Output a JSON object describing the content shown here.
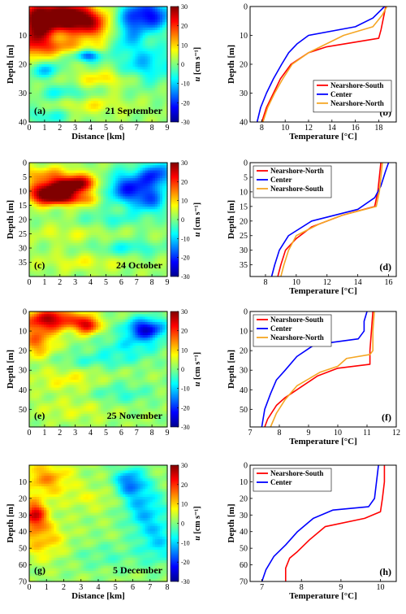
{
  "chart_data": [
    {
      "type": "heatmap",
      "panel_label": "(a)",
      "date": "21 September",
      "xlabel": "Distance [km]",
      "ylabel": "Depth [m]",
      "xlim": [
        0,
        9
      ],
      "ylim": [
        0,
        40
      ],
      "xticks": [
        0,
        1,
        2,
        3,
        4,
        5,
        6,
        7,
        8,
        9
      ],
      "yticks": [
        10,
        20,
        30,
        40
      ],
      "colorbar": {
        "label": "u [cm s⁻¹]",
        "range": [
          -30,
          30
        ],
        "ticks": [
          30,
          20,
          10,
          0,
          -10,
          -20,
          -30
        ],
        "variable": "u",
        "unit": "[cm s⁻¹]"
      },
      "features": [
        {
          "x": 1.5,
          "y": 3,
          "sx": 1.6,
          "sy": 4,
          "v": 26
        },
        {
          "x": 0.4,
          "y": 10,
          "sx": 0.8,
          "sy": 5,
          "v": 22
        },
        {
          "x": 3.2,
          "y": 4,
          "sx": 1.2,
          "sy": 3,
          "v": 18
        },
        {
          "x": 4.5,
          "y": 8,
          "sx": 1.5,
          "sy": 3,
          "v": 12
        },
        {
          "x": 2.3,
          "y": 14,
          "sx": 1.5,
          "sy": 2,
          "v": 10
        },
        {
          "x": 7.7,
          "y": 3,
          "sx": 1.2,
          "sy": 4,
          "v": -24
        },
        {
          "x": 6.3,
          "y": 9,
          "sx": 0.8,
          "sy": 4,
          "v": -14
        },
        {
          "x": 3.8,
          "y": 17,
          "sx": 0.6,
          "sy": 1.5,
          "v": -20
        },
        {
          "x": 1.0,
          "y": 22,
          "sx": 0.8,
          "sy": 2,
          "v": -12
        },
        {
          "x": 7.6,
          "y": 20,
          "sx": 1.3,
          "sy": 5,
          "v": -12
        },
        {
          "x": 5.0,
          "y": 25,
          "sx": 1.5,
          "sy": 2,
          "v": 8
        },
        {
          "x": 2.2,
          "y": 30,
          "sx": 1.2,
          "sy": 2,
          "v": -8
        },
        {
          "x": 4.0,
          "y": 34,
          "sx": 1.5,
          "sy": 2,
          "v": 6
        },
        {
          "x": 1.2,
          "y": 38,
          "sx": 1.0,
          "sy": 2,
          "v": -8
        }
      ]
    },
    {
      "type": "line",
      "panel_label": "(b)",
      "xlabel": "Temperature [°C]",
      "ylabel": "Depth [m]",
      "xlim": [
        7,
        19.5
      ],
      "ylim": [
        0,
        40
      ],
      "xticks": [
        8,
        10,
        12,
        14,
        16,
        18
      ],
      "yticks": [
        0,
        10,
        20,
        30,
        40
      ],
      "legend_position": "lower-right",
      "series": [
        {
          "name": "Nearshore-South",
          "color": "#ff0000",
          "temp": [
            18.6,
            18.4,
            18.2,
            18.0,
            13.5,
            12.0,
            10.5,
            9.6,
            9.0,
            8.4,
            8.0
          ],
          "depth": [
            0,
            4,
            8,
            11,
            14,
            16,
            20,
            25,
            30,
            35,
            40
          ]
        },
        {
          "name": "Center",
          "color": "#0000ff",
          "temp": [
            18.5,
            17.5,
            16.0,
            12.0,
            11.0,
            10.3,
            9.7,
            9.0,
            8.4,
            7.9,
            7.6
          ],
          "depth": [
            0,
            4,
            7,
            10,
            13,
            16,
            20,
            25,
            30,
            35,
            40
          ]
        },
        {
          "name": "Nearshore-North",
          "color": "#f5a623",
          "temp": [
            18.7,
            18.3,
            17.5,
            15.0,
            13.5,
            12.0,
            10.6,
            9.8,
            9.1,
            8.5,
            8.1
          ],
          "depth": [
            0,
            3,
            7,
            10,
            13,
            16,
            20,
            25,
            30,
            35,
            40
          ]
        }
      ]
    },
    {
      "type": "heatmap",
      "panel_label": "(c)",
      "date": "24 October",
      "xlabel": "",
      "ylabel": "Depth [m]",
      "xlim": [
        0,
        9
      ],
      "ylim": [
        0,
        40
      ],
      "xticks": [
        0,
        1,
        2,
        3,
        4,
        5,
        6,
        7,
        8,
        9
      ],
      "yticks": [
        0,
        5,
        10,
        15,
        20,
        25,
        30,
        35
      ],
      "colorbar": {
        "label": "u [cm s⁻¹]",
        "range": [
          -30,
          30
        ],
        "ticks": [
          30,
          20,
          10,
          0,
          -10,
          -20,
          -30
        ],
        "variable": "u",
        "unit": "[cm s⁻¹]"
      },
      "features": [
        {
          "x": 2.3,
          "y": 9,
          "sx": 1.0,
          "sy": 2.5,
          "v": 28
        },
        {
          "x": 1.0,
          "y": 11,
          "sx": 0.9,
          "sy": 2.5,
          "v": 22
        },
        {
          "x": 3.5,
          "y": 7,
          "sx": 0.9,
          "sy": 2,
          "v": 16
        },
        {
          "x": 2.6,
          "y": 13,
          "sx": 1.3,
          "sy": 1.5,
          "v": 14
        },
        {
          "x": 0.8,
          "y": 4,
          "sx": 1.5,
          "sy": 2,
          "v": 10
        },
        {
          "x": 6.6,
          "y": 9,
          "sx": 1.2,
          "sy": 4,
          "v": -22
        },
        {
          "x": 8.4,
          "y": 4,
          "sx": 0.8,
          "sy": 3,
          "v": -18
        },
        {
          "x": 8.0,
          "y": 14,
          "sx": 0.8,
          "sy": 3,
          "v": -12
        },
        {
          "x": 5.5,
          "y": 20,
          "sx": 1.5,
          "sy": 2,
          "v": -6
        },
        {
          "x": 2.5,
          "y": 25,
          "sx": 1.8,
          "sy": 2,
          "v": 4
        },
        {
          "x": 6.5,
          "y": 30,
          "sx": 1.5,
          "sy": 2,
          "v": -8
        },
        {
          "x": 3.5,
          "y": 35,
          "sx": 2.0,
          "sy": 2,
          "v": 5
        }
      ]
    },
    {
      "type": "line",
      "panel_label": "(d)",
      "xlabel": "Temperature [°C]",
      "ylabel": "Depth [m]",
      "xlim": [
        7,
        16.5
      ],
      "ylim": [
        0,
        39
      ],
      "xticks": [
        8,
        10,
        12,
        14,
        16
      ],
      "yticks": [
        0,
        5,
        10,
        15,
        20,
        25,
        30,
        35
      ],
      "legend_position": "top-left",
      "series": [
        {
          "name": "Nearshore-North",
          "color": "#ff0000",
          "temp": [
            15.5,
            15.4,
            15.3,
            15.1,
            13.0,
            11.0,
            10.0,
            9.3,
            9.0,
            8.8
          ],
          "depth": [
            0,
            5,
            10,
            15,
            18,
            22,
            26,
            30,
            35,
            39
          ]
        },
        {
          "name": "Center",
          "color": "#0000ff",
          "temp": [
            16.0,
            15.8,
            15.5,
            15.1,
            14.0,
            11.0,
            9.5,
            8.9,
            8.6,
            8.4
          ],
          "depth": [
            0,
            3,
            8,
            12,
            16,
            20,
            25,
            30,
            35,
            39
          ]
        },
        {
          "name": "Nearshore-South",
          "color": "#f5a623",
          "temp": [
            15.6,
            15.5,
            15.4,
            15.2,
            13.0,
            11.5,
            10.0,
            9.5,
            9.2,
            9.0
          ],
          "depth": [
            0,
            5,
            10,
            15,
            18,
            21,
            25,
            30,
            35,
            39
          ]
        }
      ]
    },
    {
      "type": "heatmap",
      "panel_label": "(e)",
      "date": "25 November",
      "xlabel": "",
      "ylabel": "Depth [m]",
      "xlim": [
        0,
        9
      ],
      "ylim": [
        0,
        59
      ],
      "xticks": [
        0,
        1,
        2,
        3,
        4,
        5,
        6,
        7,
        8,
        9
      ],
      "yticks": [
        0,
        10,
        20,
        30,
        40,
        50
      ],
      "colorbar": {
        "label": "u [cm s⁻¹]",
        "range": [
          -30,
          30
        ],
        "ticks": [
          30,
          20,
          10,
          0,
          -10,
          -20,
          -30
        ],
        "variable": "u",
        "unit": "[cm s⁻¹]"
      },
      "features": [
        {
          "x": 1.5,
          "y": 4,
          "sx": 1.3,
          "sy": 4,
          "v": 24
        },
        {
          "x": 3.8,
          "y": 7,
          "sx": 0.5,
          "sy": 3,
          "v": 22
        },
        {
          "x": 0.5,
          "y": 15,
          "sx": 0.8,
          "sy": 6,
          "v": 14
        },
        {
          "x": 7.6,
          "y": 9,
          "sx": 0.9,
          "sy": 4,
          "v": -26
        },
        {
          "x": 6.5,
          "y": 18,
          "sx": 1.5,
          "sy": 4,
          "v": -8
        },
        {
          "x": 4.5,
          "y": 25,
          "sx": 2.0,
          "sy": 3,
          "v": -6
        },
        {
          "x": 2.5,
          "y": 35,
          "sx": 1.5,
          "sy": 4,
          "v": 6
        },
        {
          "x": 6.0,
          "y": 42,
          "sx": 1.5,
          "sy": 4,
          "v": -6
        },
        {
          "x": 3.0,
          "y": 50,
          "sx": 1.8,
          "sy": 4,
          "v": 4
        }
      ]
    },
    {
      "type": "line",
      "panel_label": "(f)",
      "xlabel": "Temperature [°C]",
      "ylabel": "Depth [m]",
      "xlim": [
        7,
        12
      ],
      "ylim": [
        0,
        59
      ],
      "xticks": [
        7,
        8,
        9,
        10,
        11,
        12
      ],
      "yticks": [
        0,
        10,
        20,
        30,
        40,
        50
      ],
      "legend_position": "top-left",
      "series": [
        {
          "name": "Nearshore-South",
          "color": "#ff0000",
          "temp": [
            11.2,
            11.15,
            11.1,
            11.1,
            10.0,
            9.3,
            8.8,
            8.2,
            7.9,
            7.6,
            7.5
          ],
          "depth": [
            0,
            10,
            20,
            27,
            29,
            33,
            38,
            44,
            48,
            55,
            59
          ]
        },
        {
          "name": "Center",
          "color": "#0000ff",
          "temp": [
            11.0,
            10.9,
            10.9,
            10.7,
            9.2,
            8.6,
            8.2,
            7.9,
            7.7,
            7.5,
            7.4
          ],
          "depth": [
            0,
            5,
            10,
            14,
            17,
            23,
            30,
            35,
            42,
            50,
            59
          ]
        },
        {
          "name": "Nearshore-North",
          "color": "#f5a623",
          "temp": [
            11.25,
            11.2,
            11.2,
            11.1,
            10.3,
            10.0,
            9.4,
            8.6,
            8.2,
            7.9,
            7.7
          ],
          "depth": [
            0,
            10,
            20,
            22,
            24,
            28,
            31,
            38,
            45,
            52,
            59
          ]
        }
      ]
    },
    {
      "type": "heatmap",
      "panel_label": "(g)",
      "date": "5 December",
      "xlabel": "Distance [km]",
      "ylabel": "Depth [m]",
      "xlim": [
        0,
        8
      ],
      "ylim": [
        0,
        70
      ],
      "xticks": [
        0,
        1,
        2,
        3,
        4,
        5,
        6,
        7,
        8
      ],
      "yticks": [
        10,
        20,
        30,
        40,
        50,
        60,
        70
      ],
      "colorbar": {
        "label": "u [cm s⁻¹]",
        "range": [
          -30,
          30
        ],
        "ticks": [
          30,
          20,
          10,
          0,
          -10,
          -20,
          -30
        ],
        "variable": "u",
        "unit": "[cm s⁻¹]"
      },
      "features": [
        {
          "x": 0.3,
          "y": 30,
          "sx": 0.5,
          "sy": 6,
          "v": 22
        },
        {
          "x": 1.0,
          "y": 8,
          "sx": 1.0,
          "sy": 7,
          "v": 12
        },
        {
          "x": 0.8,
          "y": 45,
          "sx": 0.9,
          "sy": 8,
          "v": 10
        },
        {
          "x": 5.8,
          "y": 10,
          "sx": 0.6,
          "sy": 6,
          "v": -16
        },
        {
          "x": 6.6,
          "y": 25,
          "sx": 0.8,
          "sy": 10,
          "v": -12
        },
        {
          "x": 7.5,
          "y": 45,
          "sx": 0.8,
          "sy": 10,
          "v": -10
        },
        {
          "x": 3.5,
          "y": 20,
          "sx": 1.2,
          "sy": 5,
          "v": 4
        },
        {
          "x": 4.5,
          "y": 55,
          "sx": 1.5,
          "sy": 6,
          "v": -4
        }
      ]
    },
    {
      "type": "line",
      "panel_label": "(h)",
      "xlabel": "Temperature [°C]",
      "ylabel": "Depth [m]",
      "xlim": [
        6.7,
        10.4
      ],
      "ylim": [
        0,
        70
      ],
      "xticks": [
        7,
        8,
        9,
        10
      ],
      "yticks": [
        0,
        10,
        20,
        30,
        40,
        50,
        60,
        70
      ],
      "legend_position": "top-left",
      "series": [
        {
          "name": "Nearshore-South",
          "color": "#ff0000",
          "temp": [
            10.1,
            10.1,
            10.05,
            10.0,
            9.6,
            8.6,
            8.2,
            7.9,
            7.7,
            7.6,
            7.6
          ],
          "depth": [
            0,
            10,
            20,
            28,
            32,
            37,
            45,
            52,
            56,
            62,
            70
          ]
        },
        {
          "name": "Center",
          "color": "#0000ff",
          "temp": [
            9.95,
            9.9,
            9.85,
            9.7,
            8.8,
            8.3,
            7.9,
            7.6,
            7.3,
            7.1,
            7.0
          ],
          "depth": [
            0,
            10,
            20,
            25,
            27,
            32,
            40,
            48,
            55,
            63,
            70
          ]
        }
      ]
    }
  ]
}
